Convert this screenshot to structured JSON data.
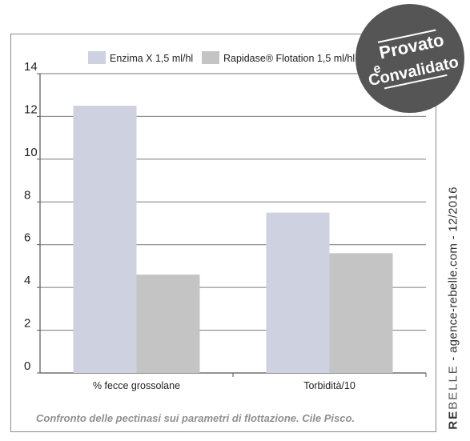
{
  "chart_data": {
    "type": "bar",
    "categories": [
      "% fecce grossolane",
      "Torbidità/10"
    ],
    "series": [
      {
        "name": "Enzima X 1,5 ml/hl",
        "values": [
          12.5,
          7.5
        ],
        "color": "#ced1e0"
      },
      {
        "name": "Rapidase® Flotation 1,5 ml/hl",
        "values": [
          4.6,
          5.6
        ],
        "color": "#c4c4c4"
      }
    ],
    "ylim": [
      0,
      14
    ],
    "yticks": [
      "0",
      "2",
      "4",
      "6",
      "8",
      "10",
      "12",
      "14"
    ],
    "grid": true,
    "legend_position": "top"
  },
  "caption": "Confronto delle pectinasi sui parametri di flottazione. Cile Pisco.",
  "badge": {
    "line1": "Provato",
    "line2": "e",
    "line3": "Convalidato",
    "color": "#555555"
  },
  "watermark": {
    "brand_bold": "RE",
    "brand_light": "BELLE",
    "rest": " - agence-rebelle.com - 12/2016"
  }
}
